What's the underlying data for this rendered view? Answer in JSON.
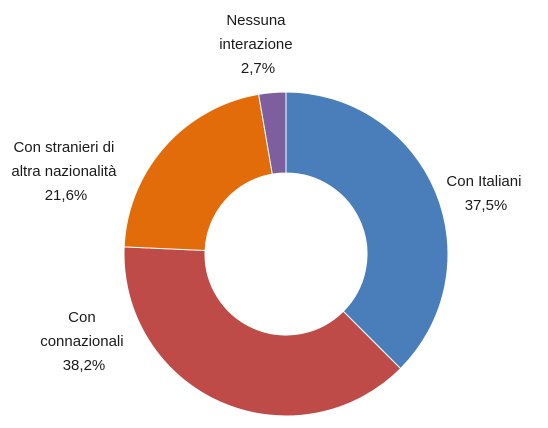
{
  "chart_data": {
    "type": "pie",
    "donut": true,
    "title": "",
    "legend": "none",
    "categories": [
      "Con Italiani",
      "Con connazionali",
      "Con stranieri di altra nazionalità",
      "Nessuna interazione"
    ],
    "values": [
      37.5,
      38.2,
      21.6,
      2.7
    ],
    "colors": [
      "#4a7ebb",
      "#be4b48",
      "#e36c0a",
      "#7d5fa0"
    ],
    "labels": [
      {
        "lines": [
          "Con Italiani",
          "37,5%"
        ]
      },
      {
        "lines": [
          "Con",
          "connazionali",
          "38,2%"
        ]
      },
      {
        "lines": [
          "Con stranieri di",
          "altra nazionalità",
          "21,6%"
        ]
      },
      {
        "lines": [
          "Nessuna",
          "interazione",
          "2,7%"
        ]
      }
    ]
  }
}
